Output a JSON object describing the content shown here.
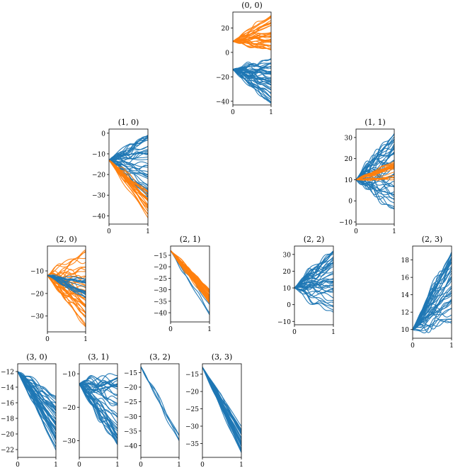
{
  "colors": {
    "series_a": "#1f77b4",
    "series_b": "#ff7f0e",
    "axes": "#000000",
    "background": "#ffffff"
  },
  "chart_data": [
    {
      "id": "p00",
      "type": "line",
      "title": "(0, 0)",
      "xlim": [
        0,
        1
      ],
      "ylim": [
        -43,
        33
      ],
      "xticks": [
        0,
        1
      ],
      "yticks": [
        20,
        0,
        -20,
        -40
      ],
      "bands": [
        {
          "color": "#1f77b4",
          "count": 42,
          "start": -14,
          "end_low": -42,
          "end_high": -5,
          "curvy": 4
        },
        {
          "color": "#ff7f0e",
          "count": 38,
          "start": 9,
          "end_low": 2,
          "end_high": 32,
          "curvy": 3
        }
      ]
    },
    {
      "id": "p10",
      "type": "line",
      "title": "(1, 0)",
      "xlim": [
        0,
        1
      ],
      "ylim": [
        -44,
        2
      ],
      "xticks": [
        0,
        1
      ],
      "yticks": [
        0,
        -10,
        -20,
        -30,
        -40
      ],
      "bands": [
        {
          "color": "#1f77b4",
          "count": 42,
          "start": -13,
          "end_low": -31,
          "end_high": 0,
          "curvy": 3
        },
        {
          "color": "#ff7f0e",
          "count": 24,
          "start": -13,
          "end_low": -42,
          "end_high": -27,
          "curvy": 1.5
        }
      ]
    },
    {
      "id": "p11",
      "type": "line",
      "title": "(1, 1)",
      "xlim": [
        0,
        1
      ],
      "ylim": [
        -11,
        34
      ],
      "xticks": [
        0,
        1
      ],
      "yticks": [
        30,
        20,
        10,
        0,
        -10
      ],
      "bands": [
        {
          "color": "#1f77b4",
          "count": 42,
          "start": 10,
          "end_low": -4,
          "end_high": 33,
          "curvy": 4
        },
        {
          "color": "#ff7f0e",
          "count": 24,
          "start": 10,
          "end_low": 10,
          "end_high": 19,
          "curvy": 1.2
        }
      ]
    },
    {
      "id": "p20",
      "type": "line",
      "title": "(2, 0)",
      "xlim": [
        0,
        1
      ],
      "ylim": [
        -37,
        1
      ],
      "xticks": [
        0,
        1
      ],
      "yticks": [
        -10,
        -20,
        -30
      ],
      "bands": [
        {
          "color": "#ff7f0e",
          "count": 42,
          "start": -12,
          "end_low": -35,
          "end_high": 0,
          "curvy": 3
        },
        {
          "color": "#1f77b4",
          "count": 20,
          "start": -12,
          "end_low": -22,
          "end_high": -13,
          "curvy": 1.2
        }
      ]
    },
    {
      "id": "p21",
      "type": "line",
      "title": "(2, 1)",
      "xlim": [
        0,
        1
      ],
      "ylim": [
        -44,
        -11
      ],
      "xticks": [
        0,
        1
      ],
      "yticks": [
        -15,
        -20,
        -25,
        -30,
        -35,
        -40
      ],
      "bands": [
        {
          "color": "#1f77b4",
          "count": 4,
          "start": -13,
          "end_low": -42,
          "end_high": -33,
          "curvy": 1.2
        },
        {
          "color": "#ff7f0e",
          "count": 34,
          "start": -13,
          "end_low": -36,
          "end_high": -30,
          "curvy": 1.5
        }
      ]
    },
    {
      "id": "p22",
      "type": "line",
      "title": "(2, 2)",
      "xlim": [
        0,
        1
      ],
      "ylim": [
        -12,
        35
      ],
      "xticks": [
        0,
        1
      ],
      "yticks": [
        30,
        20,
        10,
        0,
        -10
      ],
      "bands": [
        {
          "color": "#1f77b4",
          "count": 42,
          "start": 10,
          "end_low": -5,
          "end_high": 33,
          "curvy": 4
        }
      ]
    },
    {
      "id": "p23",
      "type": "line",
      "title": "(2, 3)",
      "xlim": [
        0,
        1
      ],
      "ylim": [
        9,
        19.6
      ],
      "xticks": [
        0,
        1
      ],
      "yticks": [
        18,
        16,
        14,
        12,
        10
      ],
      "bands": [
        {
          "color": "#1f77b4",
          "count": 40,
          "start": 10,
          "end_low": 10,
          "end_high": 19,
          "curvy": 1
        }
      ]
    },
    {
      "id": "p30",
      "type": "line",
      "title": "(3, 0)",
      "xlim": [
        0,
        1
      ],
      "ylim": [
        -23,
        -11
      ],
      "xticks": [
        0,
        1
      ],
      "yticks": [
        -12,
        -14,
        -16,
        -18,
        -20,
        -22
      ],
      "bands": [
        {
          "color": "#1f77b4",
          "count": 40,
          "start": -12,
          "end_low": -22.5,
          "end_high": -15,
          "curvy": 0.7
        }
      ]
    },
    {
      "id": "p31",
      "type": "line",
      "title": "(3, 1)",
      "xlim": [
        0,
        1
      ],
      "ylim": [
        -35,
        -7
      ],
      "xticks": [
        0,
        1
      ],
      "yticks": [
        -10,
        -20,
        -30
      ],
      "bands": [
        {
          "color": "#1f77b4",
          "count": 42,
          "start": -13,
          "end_low": -32,
          "end_high": -10,
          "curvy": 2.5
        }
      ]
    },
    {
      "id": "p32",
      "type": "line",
      "title": "(3, 2)",
      "xlim": [
        0,
        1
      ],
      "ylim": [
        -44,
        -12
      ],
      "xticks": [
        0,
        1
      ],
      "yticks": [
        -15,
        -20,
        -25,
        -30,
        -35,
        -40
      ],
      "bands": [
        {
          "color": "#1f77b4",
          "count": 4,
          "start": -13,
          "end_low": -43,
          "end_high": -36,
          "curvy": 1.5
        }
      ]
    },
    {
      "id": "p33",
      "type": "line",
      "title": "(3, 3)",
      "xlim": [
        0,
        1
      ],
      "ylim": [
        -39,
        -12
      ],
      "xticks": [
        0,
        1
      ],
      "yticks": [
        -15,
        -20,
        -25,
        -30,
        -35
      ],
      "bands": [
        {
          "color": "#1f77b4",
          "count": 30,
          "start": -13,
          "end_low": -38,
          "end_high": -30,
          "curvy": 0.8
        }
      ]
    }
  ]
}
